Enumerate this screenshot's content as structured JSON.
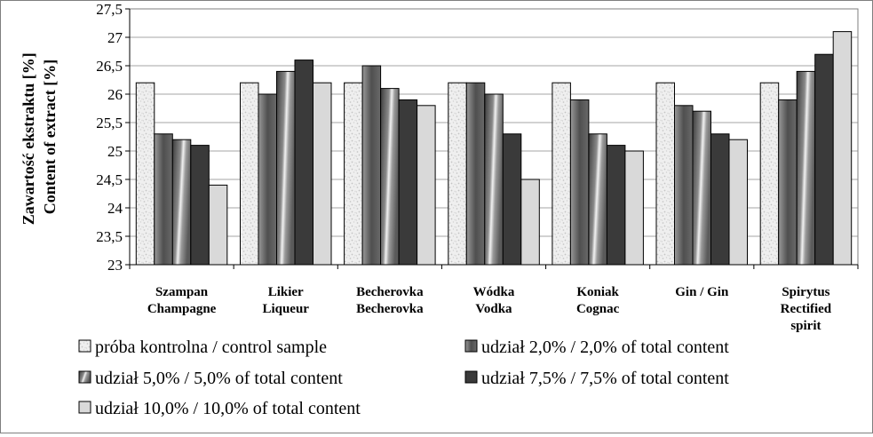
{
  "chart_data": {
    "type": "bar",
    "ylabel": [
      "Zawartość ekstraktu [%]",
      "Content of extract [%]"
    ],
    "ylim": [
      23,
      27.5
    ],
    "ytick_step": 0.5,
    "yticks": [
      "23",
      "23,5",
      "24",
      "24,5",
      "25",
      "25,5",
      "26",
      "26,5",
      "27",
      "27,5"
    ],
    "grid": "horizontal",
    "legend_placement": "bottom",
    "categories": [
      [
        "Szampan",
        "Champagne"
      ],
      [
        "Likier",
        "Liqueur"
      ],
      [
        "Becherovka",
        "Becherovka"
      ],
      [
        "Wódka",
        "Vodka"
      ],
      [
        "Koniak",
        "Cognac"
      ],
      [
        "Gin / Gin"
      ],
      [
        "Spirytus",
        "Rectified",
        "spirit"
      ]
    ],
    "series": [
      {
        "name": "próba kontrolna / control sample",
        "values": [
          26.2,
          26.2,
          26.2,
          26.2,
          26.2,
          26.2,
          26.2
        ],
        "color": "#ececec",
        "pattern": "speckled"
      },
      {
        "name": "udział  2,0% / 2,0% of total content",
        "values": [
          25.3,
          26.0,
          26.5,
          26.2,
          25.9,
          25.8,
          25.9
        ],
        "color": "#5f5f5f",
        "pattern": "gradient"
      },
      {
        "name": "udział  5,0% / 5,0% of total content",
        "values": [
          25.2,
          26.4,
          26.1,
          26.0,
          25.3,
          25.7,
          26.4
        ],
        "color": "#7a7a7a",
        "pattern": "diagonal-gradient"
      },
      {
        "name": "udział  7,5% / 7,5% of total content",
        "values": [
          25.1,
          26.6,
          25.9,
          25.3,
          25.1,
          25.3,
          26.7
        ],
        "color": "#3a3a3a",
        "pattern": "solid"
      },
      {
        "name": "udział 10,0% / 10,0% of total content",
        "values": [
          24.4,
          26.2,
          25.8,
          24.5,
          25.0,
          25.2,
          27.1
        ],
        "color": "#d9d9d9",
        "pattern": "solid"
      }
    ]
  }
}
